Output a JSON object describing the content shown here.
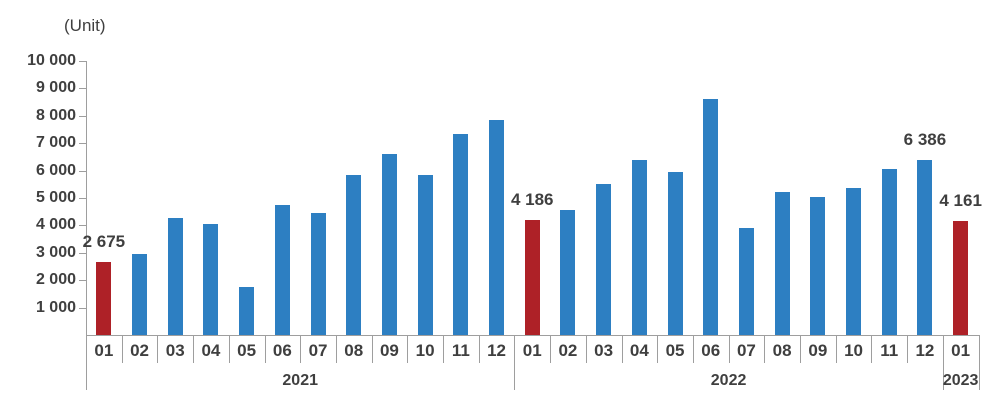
{
  "chart_data": {
    "type": "bar",
    "unit_label": "(Unit)",
    "ylabel": "(Unit)",
    "ylim": [
      0,
      10000
    ],
    "ytick_step": 1000,
    "ytick_labels": [
      "10 000",
      "9 000",
      "8 000",
      "7 000",
      "6 000",
      "5 000",
      "4 000",
      "3 000",
      "2 000",
      "1 000"
    ],
    "grid": false,
    "legend": "none",
    "bar_color": "#2D7FC2",
    "highlight_color": "#AE2127",
    "highlight_months": [
      "01"
    ],
    "groups": [
      {
        "year": "2021",
        "months": [
          "01",
          "02",
          "03",
          "04",
          "05",
          "06",
          "07",
          "08",
          "09",
          "10",
          "11",
          "12"
        ],
        "values": [
          2675,
          2950,
          4270,
          4060,
          1750,
          4750,
          4470,
          5840,
          6590,
          5850,
          7330,
          7830
        ]
      },
      {
        "year": "2022",
        "months": [
          "01",
          "02",
          "03",
          "04",
          "05",
          "06",
          "07",
          "08",
          "09",
          "10",
          "11",
          "12"
        ],
        "values": [
          4186,
          4570,
          5510,
          6390,
          5950,
          8630,
          3890,
          5210,
          5020,
          5360,
          6060,
          6386
        ]
      },
      {
        "year": "2023",
        "months": [
          "01"
        ],
        "values": [
          4161
        ]
      }
    ],
    "data_labels": [
      {
        "year": "2021",
        "month": "01",
        "text": "2 675",
        "value": 2675
      },
      {
        "year": "2022",
        "month": "01",
        "text": "4 186",
        "value": 4186
      },
      {
        "year": "2022",
        "month": "12",
        "text": "6 386",
        "value": 6386
      },
      {
        "year": "2023",
        "month": "01",
        "text": "4 161",
        "value": 4161
      }
    ]
  },
  "colors": {
    "bar_blue": "#2D7FC2",
    "bar_red": "#AE2127",
    "axis_line": "#9E9E9E",
    "text": "#3F3F3F"
  }
}
